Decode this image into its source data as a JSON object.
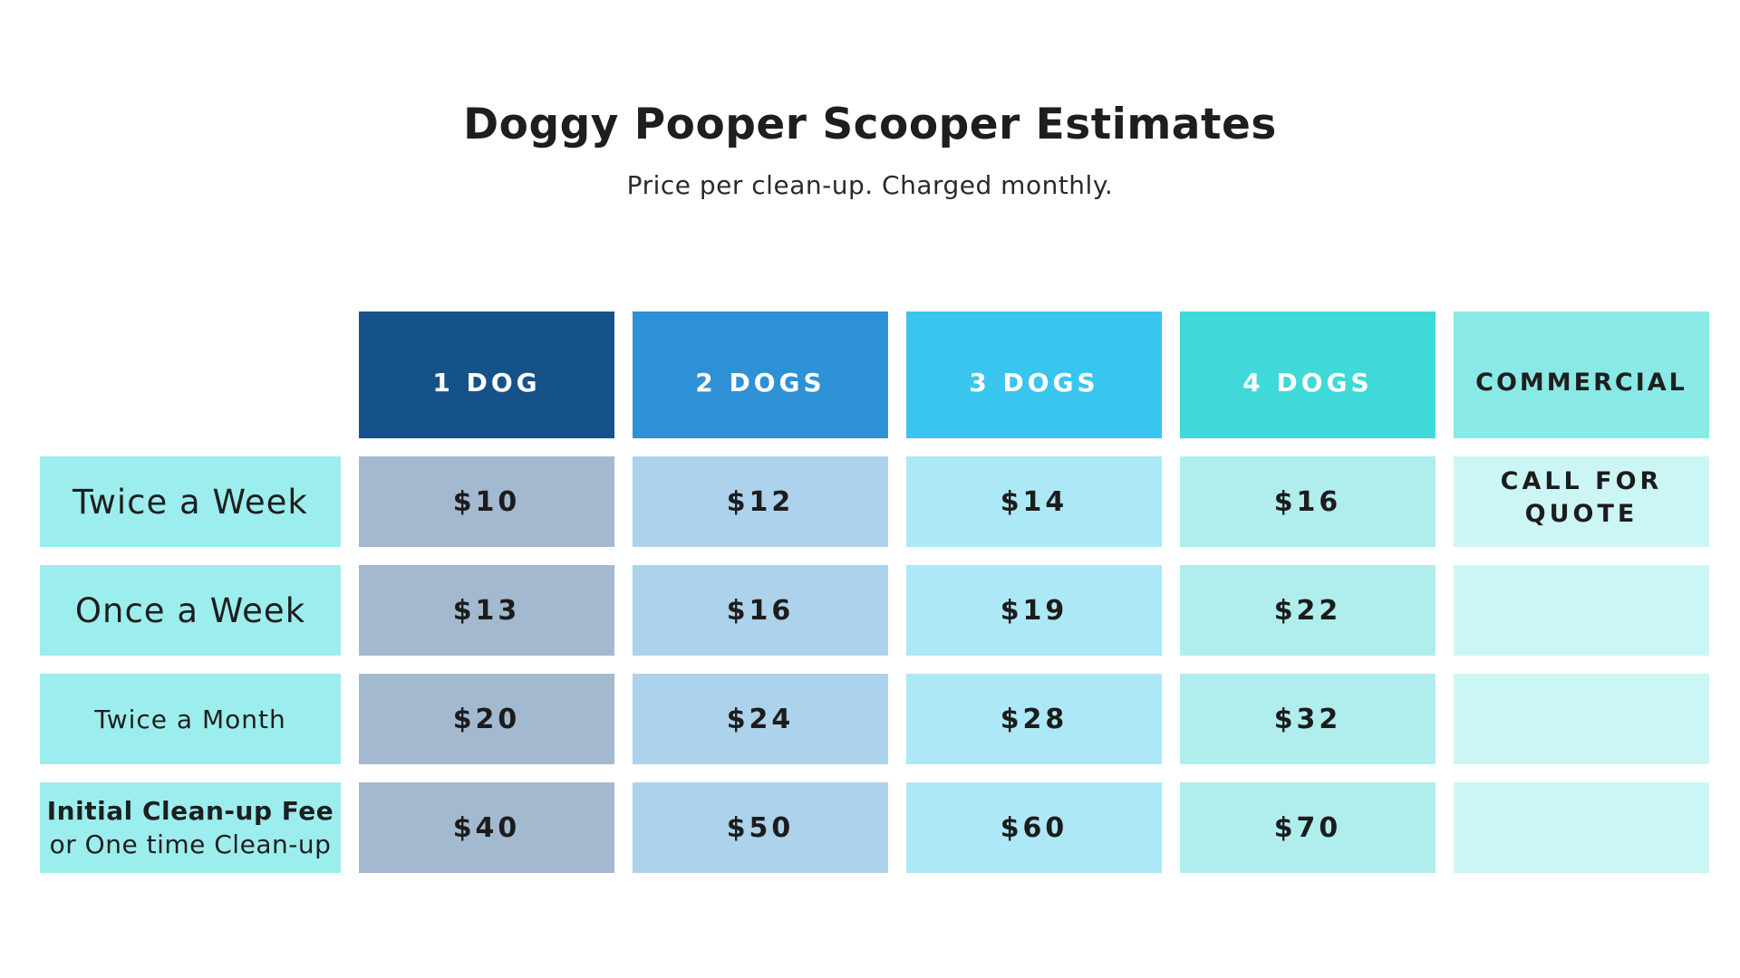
{
  "title": "Doggy Pooper Scooper Estimates",
  "subtitle": "Price per clean-up. Charged monthly.",
  "columns": [
    {
      "label": "1 DOG",
      "header_color": "#15528a",
      "cell_color": "#a3b9d0",
      "header_text_color": "#ffffff"
    },
    {
      "label": "2 DOGS",
      "header_color": "#2e90d5",
      "cell_color": "#acd2ec",
      "header_text_color": "#ffffff"
    },
    {
      "label": "3 DOGS",
      "header_color": "#39c6ee",
      "cell_color": "#ade8f7",
      "header_text_color": "#ffffff"
    },
    {
      "label": "4 DOGS",
      "header_color": "#3ed9d8",
      "cell_color": "#b0eeed",
      "header_text_color": "#ffffff"
    },
    {
      "label": "COMMERCIAL",
      "header_color": "#88e9e6",
      "cell_color": "#ccf6f5",
      "header_text_color": "#1e1e1e"
    }
  ],
  "row_label_color": "#9ceeee",
  "rows": [
    {
      "label": "Twice a Week",
      "prices": [
        "$10",
        "$12",
        "$14",
        "$16"
      ]
    },
    {
      "label": "Once a Week",
      "prices": [
        "$13",
        "$16",
        "$19",
        "$22"
      ]
    },
    {
      "label": "Twice a Month",
      "prices": [
        "$20",
        "$24",
        "$28",
        "$32"
      ]
    },
    {
      "label_line1": "Initial Clean-up Fee",
      "label_line2": "or One time Clean-up",
      "prices": [
        "$40",
        "$50",
        "$60",
        "$70"
      ]
    }
  ],
  "commercial_quote": {
    "line1": "CALL FOR",
    "line2": "QUOTE"
  }
}
